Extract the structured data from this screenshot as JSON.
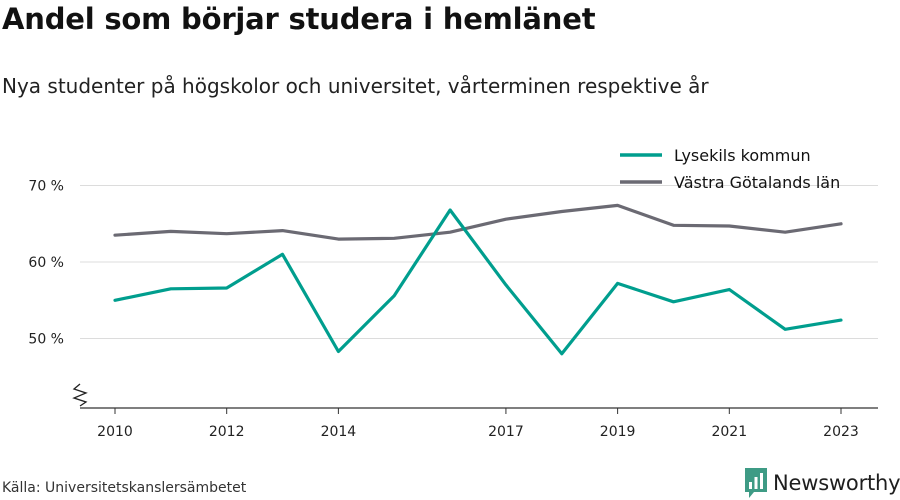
{
  "chart_data": {
    "type": "line",
    "title": "Andel som börjar studera i hemlänet",
    "subtitle": "Nya studenter på högskolor och universitet, vårterminen respektive år",
    "x": [
      2010,
      2011,
      2012,
      2013,
      2014,
      2015,
      2016,
      2017,
      2018,
      2019,
      2020,
      2021,
      2022,
      2023
    ],
    "x_tick_labels": [
      "2010",
      "2012",
      "2014",
      "2017",
      "2019",
      "2021",
      "2023"
    ],
    "y_ticks": [
      50,
      60,
      70
    ],
    "y_tick_labels": [
      "50 %",
      "60 %",
      "70 %"
    ],
    "ylim": [
      41,
      72
    ],
    "y_axis_break": true,
    "grid": true,
    "legend_position": "top-right",
    "series": [
      {
        "name": "Lysekils kommun",
        "color": "#009e8e",
        "values": [
          55.0,
          56.5,
          56.6,
          61.0,
          48.3,
          55.6,
          66.8,
          57.0,
          48.0,
          57.2,
          54.8,
          56.4,
          51.2,
          52.4
        ]
      },
      {
        "name": "Västra Götalands län",
        "color": "#6b6a73",
        "values": [
          63.5,
          64.0,
          63.7,
          64.1,
          63.0,
          63.1,
          63.9,
          65.6,
          66.6,
          67.4,
          64.8,
          64.7,
          63.9,
          65.0
        ]
      }
    ]
  },
  "source": "Källa: Universitetskanslersämbetet",
  "brand": {
    "name": "Newsworthy",
    "icon": "newsworthy-logo-icon",
    "color": "#3e9b85"
  }
}
